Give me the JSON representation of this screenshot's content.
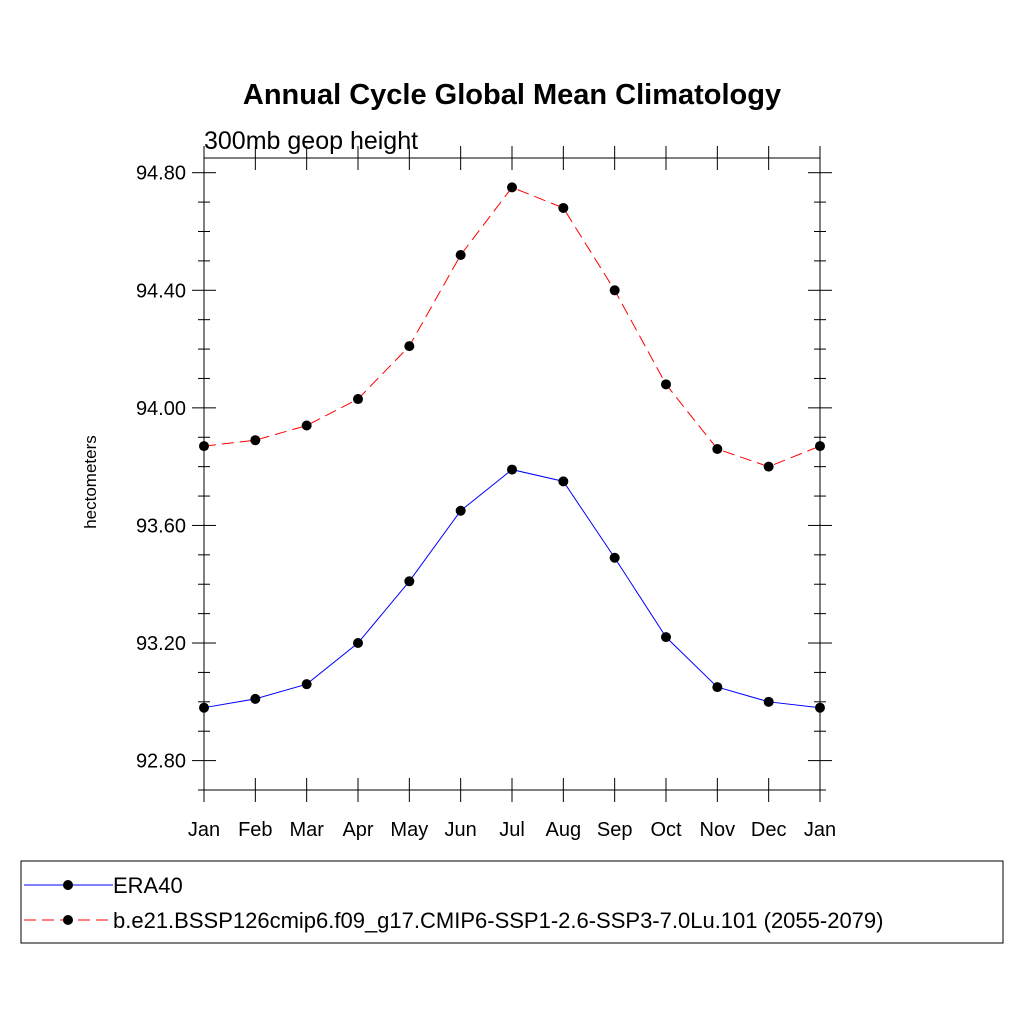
{
  "chart_data": {
    "type": "line",
    "title": "Annual Cycle Global Mean Climatology",
    "subtitle": "300mb geop height",
    "ylabel": "hectometers",
    "xlabel": "",
    "categories": [
      "Jan",
      "Feb",
      "Mar",
      "Apr",
      "May",
      "Jun",
      "Jul",
      "Aug",
      "Sep",
      "Oct",
      "Nov",
      "Dec",
      "Jan"
    ],
    "ylim": [
      92.7,
      94.85
    ],
    "yticks": [
      "94.80",
      "94.40",
      "94.00",
      "93.60",
      "93.20",
      "92.80"
    ],
    "grid": false,
    "legend_position": "bottom",
    "series": [
      {
        "name": "ERA40",
        "color": "#0000ff",
        "line_style": "solid",
        "marker": "filled-circle",
        "values": [
          92.98,
          93.01,
          93.06,
          93.2,
          93.41,
          93.65,
          93.79,
          93.75,
          93.49,
          93.22,
          93.05,
          93.0,
          92.98
        ]
      },
      {
        "name": "b.e21.BSSP126cmip6.f09_g17.CMIP6-SSP1-2.6-SSP3-7.0Lu.101 (2055-2079)",
        "color": "#ff0000",
        "line_style": "dashed",
        "marker": "filled-circle",
        "values": [
          93.87,
          93.89,
          93.94,
          94.03,
          94.21,
          94.52,
          94.75,
          94.68,
          94.4,
          94.08,
          93.86,
          93.8,
          93.87
        ]
      }
    ]
  }
}
